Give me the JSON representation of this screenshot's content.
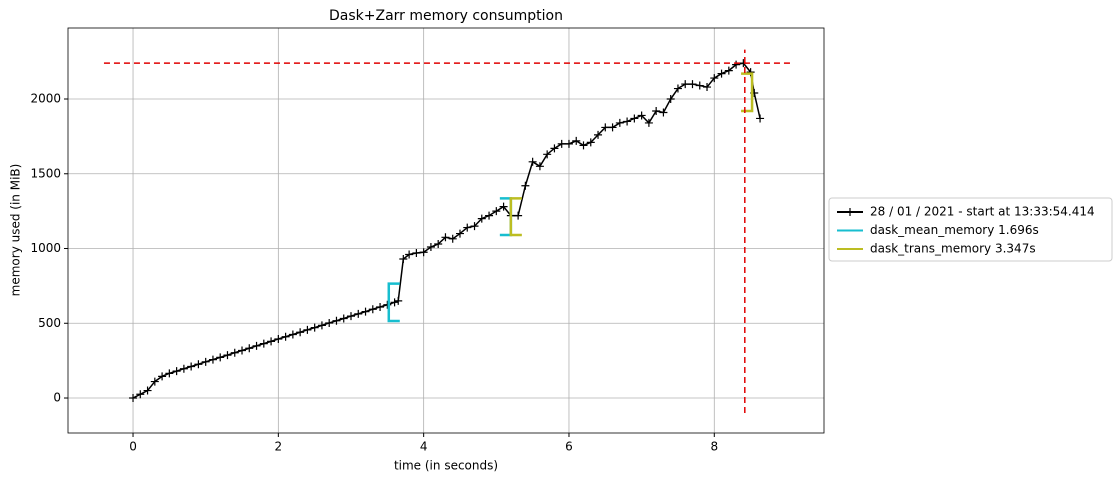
{
  "chart_data": {
    "type": "line",
    "title": "Dask+Zarr memory consumption",
    "x_label": "time (in seconds)",
    "y_label": "memory used (in MiB)",
    "xlim": [
      -0.895,
      9.51
    ],
    "ylim": [
      -234,
      2475
    ],
    "xticks": [
      0,
      2,
      4,
      6,
      8
    ],
    "yticks": [
      0,
      500,
      1000,
      1500,
      2000
    ],
    "grid": true,
    "legend": "outside right",
    "series": [
      {
        "name": "28 / 01 / 2021 - start at 13:33:54.414",
        "color": "#000000",
        "marker": "+",
        "x": [
          0,
          0.1,
          0.2,
          0.3,
          0.4,
          0.5,
          0.6,
          0.7,
          0.8,
          0.9,
          1.0,
          1.1,
          1.2,
          1.3,
          1.4,
          1.5,
          1.6,
          1.7,
          1.8,
          1.9,
          2.0,
          2.1,
          2.2,
          2.3,
          2.4,
          2.5,
          2.6,
          2.7,
          2.8,
          2.9,
          3.0,
          3.1,
          3.2,
          3.3,
          3.4,
          3.5,
          3.6,
          3.65,
          3.72,
          3.8,
          3.9,
          4.0,
          4.1,
          4.2,
          4.3,
          4.4,
          4.5,
          4.6,
          4.7,
          4.8,
          4.9,
          5.0,
          5.1,
          5.2,
          5.3,
          5.4,
          5.5,
          5.6,
          5.7,
          5.8,
          5.9,
          6.0,
          6.1,
          6.2,
          6.3,
          6.4,
          6.5,
          6.6,
          6.7,
          6.8,
          6.9,
          7.0,
          7.1,
          7.2,
          7.3,
          7.4,
          7.5,
          7.6,
          7.7,
          7.8,
          7.9,
          8.0,
          8.1,
          8.2,
          8.3,
          8.4,
          8.5,
          8.55,
          8.63
        ],
        "values": [
          0,
          25,
          50,
          110,
          145,
          165,
          180,
          196,
          211,
          226,
          242,
          257,
          272,
          287,
          303,
          318,
          333,
          349,
          364,
          379,
          395,
          410,
          425,
          440,
          456,
          471,
          486,
          502,
          517,
          532,
          548,
          563,
          578,
          594,
          609,
          624,
          640,
          650,
          930,
          960,
          970,
          975,
          1010,
          1030,
          1075,
          1065,
          1100,
          1140,
          1150,
          1200,
          1220,
          1250,
          1280,
          1220,
          1220,
          1420,
          1580,
          1550,
          1630,
          1670,
          1700,
          1700,
          1720,
          1690,
          1710,
          1760,
          1810,
          1810,
          1840,
          1850,
          1870,
          1890,
          1840,
          1920,
          1910,
          2000,
          2070,
          2100,
          2100,
          2090,
          2080,
          2140,
          2170,
          2190,
          2230,
          2240,
          2180,
          2040,
          1870
        ]
      },
      {
        "name": "dask_mean_memory 1.696s",
        "color": "#17becf",
        "start": 3.52,
        "end": 5.2,
        "start_range": [
          515,
          765
        ],
        "end_range": [
          1090,
          1335
        ]
      },
      {
        "name": "dask_trans_memory 3.347s",
        "color": "#bcbd22",
        "start": 5.2,
        "end": 8.52,
        "start_range": [
          1090,
          1335
        ],
        "end_range": [
          1920,
          2170
        ]
      }
    ],
    "max_lines": {
      "color": "#e00000",
      "x": 8.42,
      "y": 2240,
      "h_extent": [
        -0.4,
        9.05
      ],
      "v_extent": [
        -100,
        2330
      ]
    }
  }
}
